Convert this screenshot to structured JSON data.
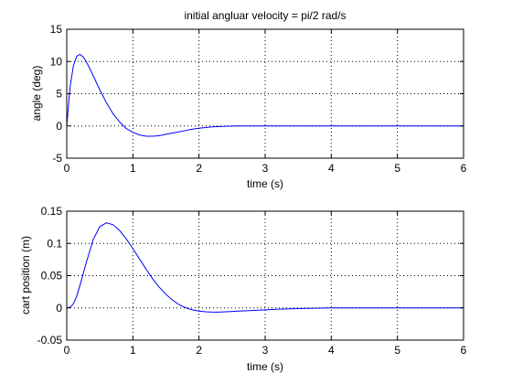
{
  "chart_data": [
    {
      "type": "line",
      "title": "initial angluar velocity = pi/2 rad/s",
      "xlabel": "time (s)",
      "ylabel": "angle (deg)",
      "xlim": [
        0,
        6
      ],
      "ylim": [
        -5,
        15
      ],
      "xticks": [
        0,
        1,
        2,
        3,
        4,
        5,
        6
      ],
      "xtick_labels": [
        "0",
        "1",
        "2",
        "3",
        "4",
        "5",
        "6"
      ],
      "yticks": [
        -5,
        0,
        5,
        10,
        15
      ],
      "ytick_labels": [
        "-5",
        "0",
        "5",
        "10",
        "15"
      ],
      "grid": true,
      "line_color": "#0000ff",
      "x": [
        0,
        0.05,
        0.1,
        0.15,
        0.2,
        0.25,
        0.3,
        0.4,
        0.5,
        0.6,
        0.7,
        0.8,
        0.9,
        1.0,
        1.1,
        1.2,
        1.3,
        1.4,
        1.5,
        1.6,
        1.7,
        1.8,
        1.9,
        2.0,
        2.2,
        2.4,
        2.6,
        2.8,
        3.0,
        3.5,
        4.0,
        5.0,
        6.0
      ],
      "y": [
        0,
        6.0,
        9.3,
        10.8,
        11.1,
        10.7,
        9.9,
        7.8,
        5.6,
        3.6,
        1.9,
        0.6,
        -0.4,
        -1.0,
        -1.4,
        -1.6,
        -1.6,
        -1.5,
        -1.3,
        -1.1,
        -0.9,
        -0.7,
        -0.5,
        -0.35,
        -0.15,
        -0.05,
        0.0,
        0.0,
        0.0,
        0.0,
        0.0,
        0.0,
        0.0
      ]
    },
    {
      "type": "line",
      "title": "",
      "xlabel": "time (s)",
      "ylabel": "cart position (m)",
      "xlim": [
        0,
        6
      ],
      "ylim": [
        -0.05,
        0.15
      ],
      "xticks": [
        0,
        1,
        2,
        3,
        4,
        5,
        6
      ],
      "xtick_labels": [
        "0",
        "1",
        "2",
        "3",
        "4",
        "5",
        "6"
      ],
      "yticks": [
        -0.05,
        0,
        0.05,
        0.1,
        0.15
      ],
      "ytick_labels": [
        "-0.05",
        "0",
        "0.05",
        "0.1",
        "0.15"
      ],
      "grid": true,
      "line_color": "#0000ff",
      "x": [
        0,
        0.05,
        0.1,
        0.15,
        0.2,
        0.3,
        0.4,
        0.5,
        0.6,
        0.7,
        0.8,
        0.9,
        1.0,
        1.1,
        1.2,
        1.3,
        1.4,
        1.5,
        1.6,
        1.7,
        1.8,
        1.9,
        2.0,
        2.1,
        2.2,
        2.3,
        2.4,
        2.6,
        2.8,
        3.0,
        3.2,
        3.5,
        4.0,
        5.0,
        6.0
      ],
      "y": [
        0,
        0.001,
        0.006,
        0.018,
        0.035,
        0.072,
        0.106,
        0.126,
        0.132,
        0.129,
        0.12,
        0.107,
        0.092,
        0.076,
        0.06,
        0.045,
        0.032,
        0.021,
        0.012,
        0.005,
        0.0,
        -0.003,
        -0.005,
        -0.006,
        -0.0065,
        -0.0065,
        -0.006,
        -0.005,
        -0.004,
        -0.003,
        -0.002,
        -0.001,
        0.0,
        0.0,
        0.0
      ]
    }
  ]
}
